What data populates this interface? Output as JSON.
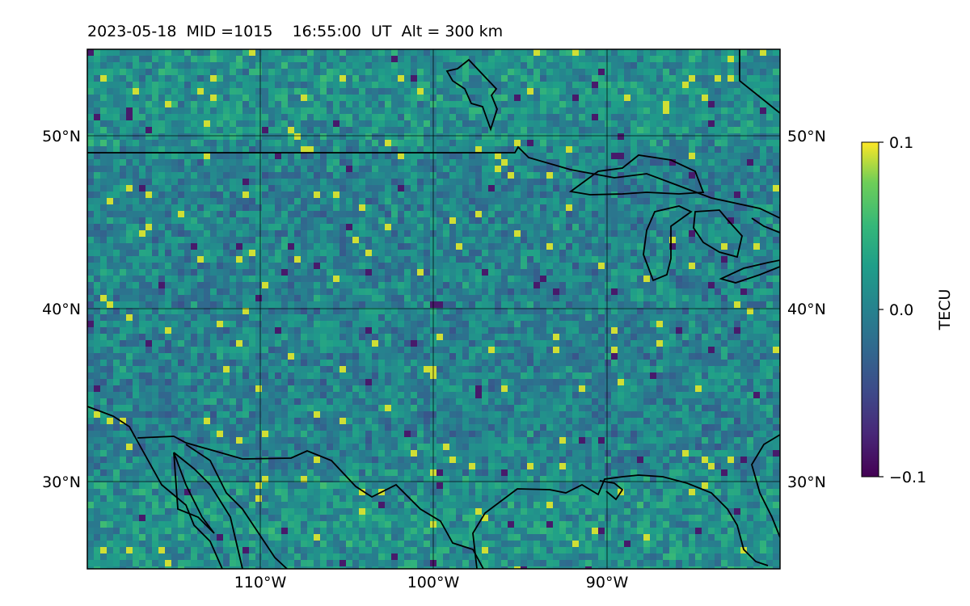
{
  "title": "2023-05-18  MID =1015    16:55:00  UT  Alt = 300 km",
  "map": {
    "lat_labels": [
      "50°N",
      "40°N",
      "30°N"
    ],
    "lon_labels": [
      "110°W",
      "100°W",
      "90°W"
    ],
    "gridlines": "on",
    "coastlines": "on",
    "colormap": "viridis"
  },
  "colorbar": {
    "label": "TECU",
    "tick_labels": [
      "0.1",
      "0.0",
      "−0.1"
    ],
    "min": -0.1,
    "max": 0.1
  },
  "colors": {
    "viridis_low": "#440154",
    "viridis_mid": "#21918c",
    "viridis_high": "#fde725"
  }
}
